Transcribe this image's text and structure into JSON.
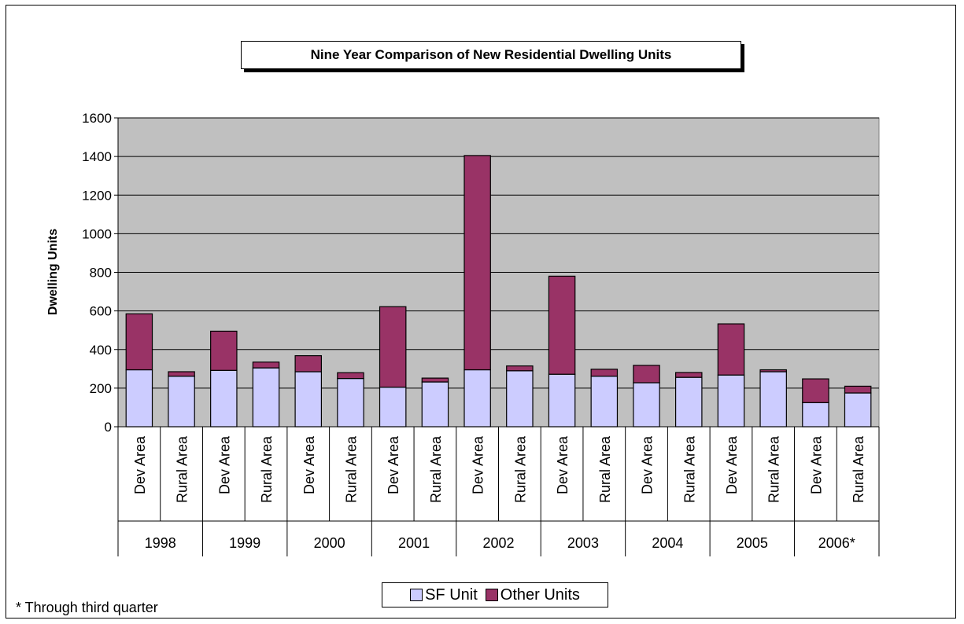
{
  "chart_data": {
    "type": "bar",
    "stacked": true,
    "title": "Nine Year Comparison of New Residential Dwelling Units",
    "ylabel": "Dwelling Units",
    "xlabel": "",
    "ylim": [
      0,
      1600
    ],
    "yticks": [
      0,
      200,
      400,
      600,
      800,
      1000,
      1200,
      1400,
      1600
    ],
    "grid": true,
    "legend_position": "bottom",
    "plot_background": "#c0c0c0",
    "groups": [
      "1998",
      "1999",
      "2000",
      "2001",
      "2002",
      "2003",
      "2004",
      "2005",
      "2006*"
    ],
    "subcategories": [
      "Dev Area",
      "Rural Area"
    ],
    "categories": [
      "Dev Area",
      "Rural Area",
      "Dev Area",
      "Rural Area",
      "Dev Area",
      "Rural Area",
      "Dev Area",
      "Rural Area",
      "Dev Area",
      "Rural Area",
      "Dev Area",
      "Rural Area",
      "Dev Area",
      "Rural Area",
      "Dev Area",
      "Rural Area",
      "Dev Area",
      "Rural Area"
    ],
    "series": [
      {
        "name": "SF Unit",
        "color": "#ccccff",
        "values": [
          295,
          262,
          292,
          305,
          285,
          250,
          205,
          232,
          295,
          290,
          272,
          262,
          228,
          256,
          268,
          285,
          125,
          175
        ]
      },
      {
        "name": "Other Units",
        "color": "#993366",
        "values": [
          290,
          23,
          203,
          30,
          83,
          30,
          417,
          20,
          1110,
          25,
          508,
          36,
          90,
          25,
          265,
          10,
          123,
          35
        ]
      }
    ]
  },
  "footnote": "* Through third quarter"
}
